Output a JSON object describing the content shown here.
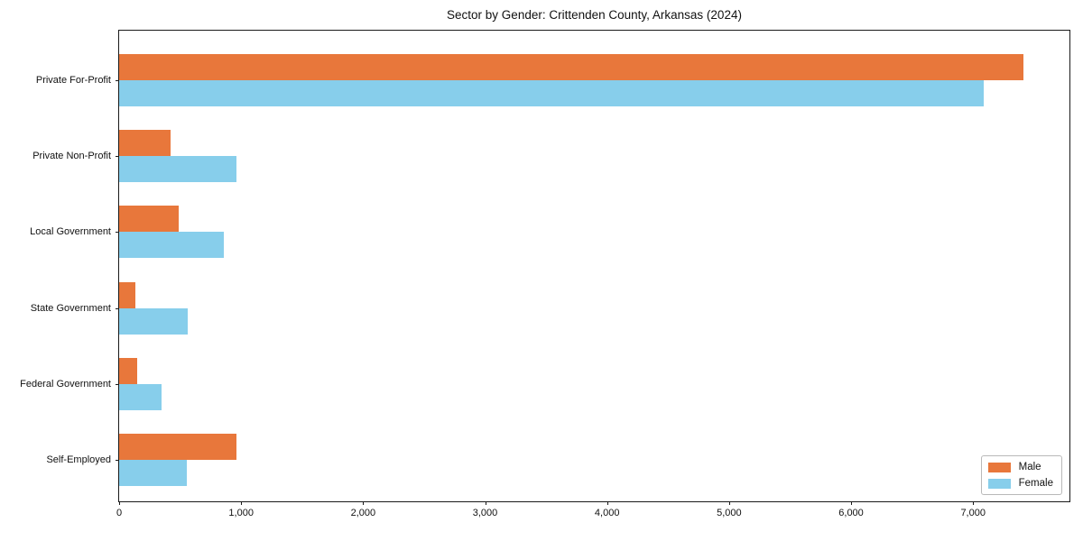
{
  "title": "Sector by Gender: Crittenden County, Arkansas (2024)",
  "colors": {
    "male": "#E8773B",
    "female": "#87CEEB",
    "axis": "#1a1a1a",
    "background": "#ffffff",
    "legend_border": "#b9b9b9"
  },
  "chart_data": {
    "type": "bar",
    "orientation": "horizontal",
    "title": "Sector by Gender: Crittenden County, Arkansas (2024)",
    "categories": [
      "Private For-Profit",
      "Private Non-Profit",
      "Local Government",
      "State Government",
      "Federal Government",
      "Self-Employed"
    ],
    "series": [
      {
        "name": "Male",
        "color": "#E8773B",
        "values": [
          7410,
          420,
          490,
          135,
          150,
          965
        ]
      },
      {
        "name": "Female",
        "color": "#87CEEB",
        "values": [
          7090,
          965,
          855,
          560,
          350,
          555
        ]
      }
    ],
    "xlabel": "",
    "ylabel": "",
    "xlim": [
      0,
      7790
    ],
    "xticks": [
      0,
      1000,
      2000,
      3000,
      4000,
      5000,
      6000,
      7000
    ],
    "xtick_labels": [
      "0",
      "1,000",
      "2,000",
      "3,000",
      "4,000",
      "5,000",
      "6,000",
      "7,000"
    ],
    "grid": false,
    "legend_position": "lower right"
  }
}
